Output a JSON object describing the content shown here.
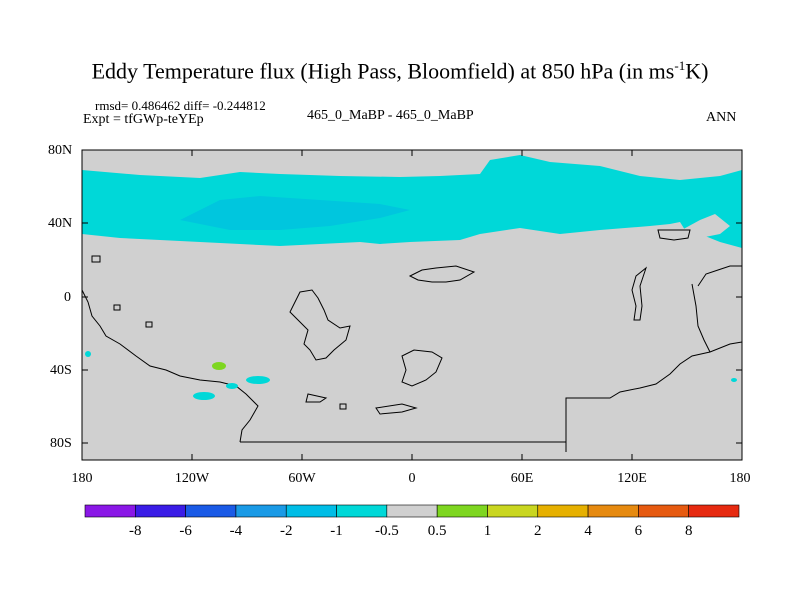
{
  "title": {
    "main": "Eddy Temperature flux (High Pass, Bloomfield) at 850 hPa (in ms",
    "sup": "-1",
    "end": "K)"
  },
  "stats": "rmsd= 0.486462 diff= -0.244812",
  "experiment": "Expt = tfGWp-teYEp",
  "case_label": "465_0_MaBP - 465_0_MaBP",
  "season": "ANN",
  "map": {
    "lon_ticks": [
      "180",
      "120W",
      "60W",
      "0",
      "60E",
      "120E",
      "180"
    ],
    "lat_ticks": [
      "80N",
      "40N",
      "0",
      "40S",
      "80S"
    ],
    "background_color": "#d0d0d0",
    "field_color": "#00d8d8"
  },
  "colorbar": {
    "labels": [
      "-8",
      "-6",
      "-4",
      "-2",
      "-1",
      "-0.5",
      "0.5",
      "1",
      "2",
      "4",
      "6",
      "8"
    ],
    "colors": [
      "#8a17e6",
      "#3a1ce6",
      "#1a5ae6",
      "#1a9ae6",
      "#00bde6",
      "#00d8d8",
      "#d0d0d0",
      "#7ed620",
      "#c9d620",
      "#e6b000",
      "#e68a10",
      "#e65a10",
      "#e62a10"
    ]
  }
}
